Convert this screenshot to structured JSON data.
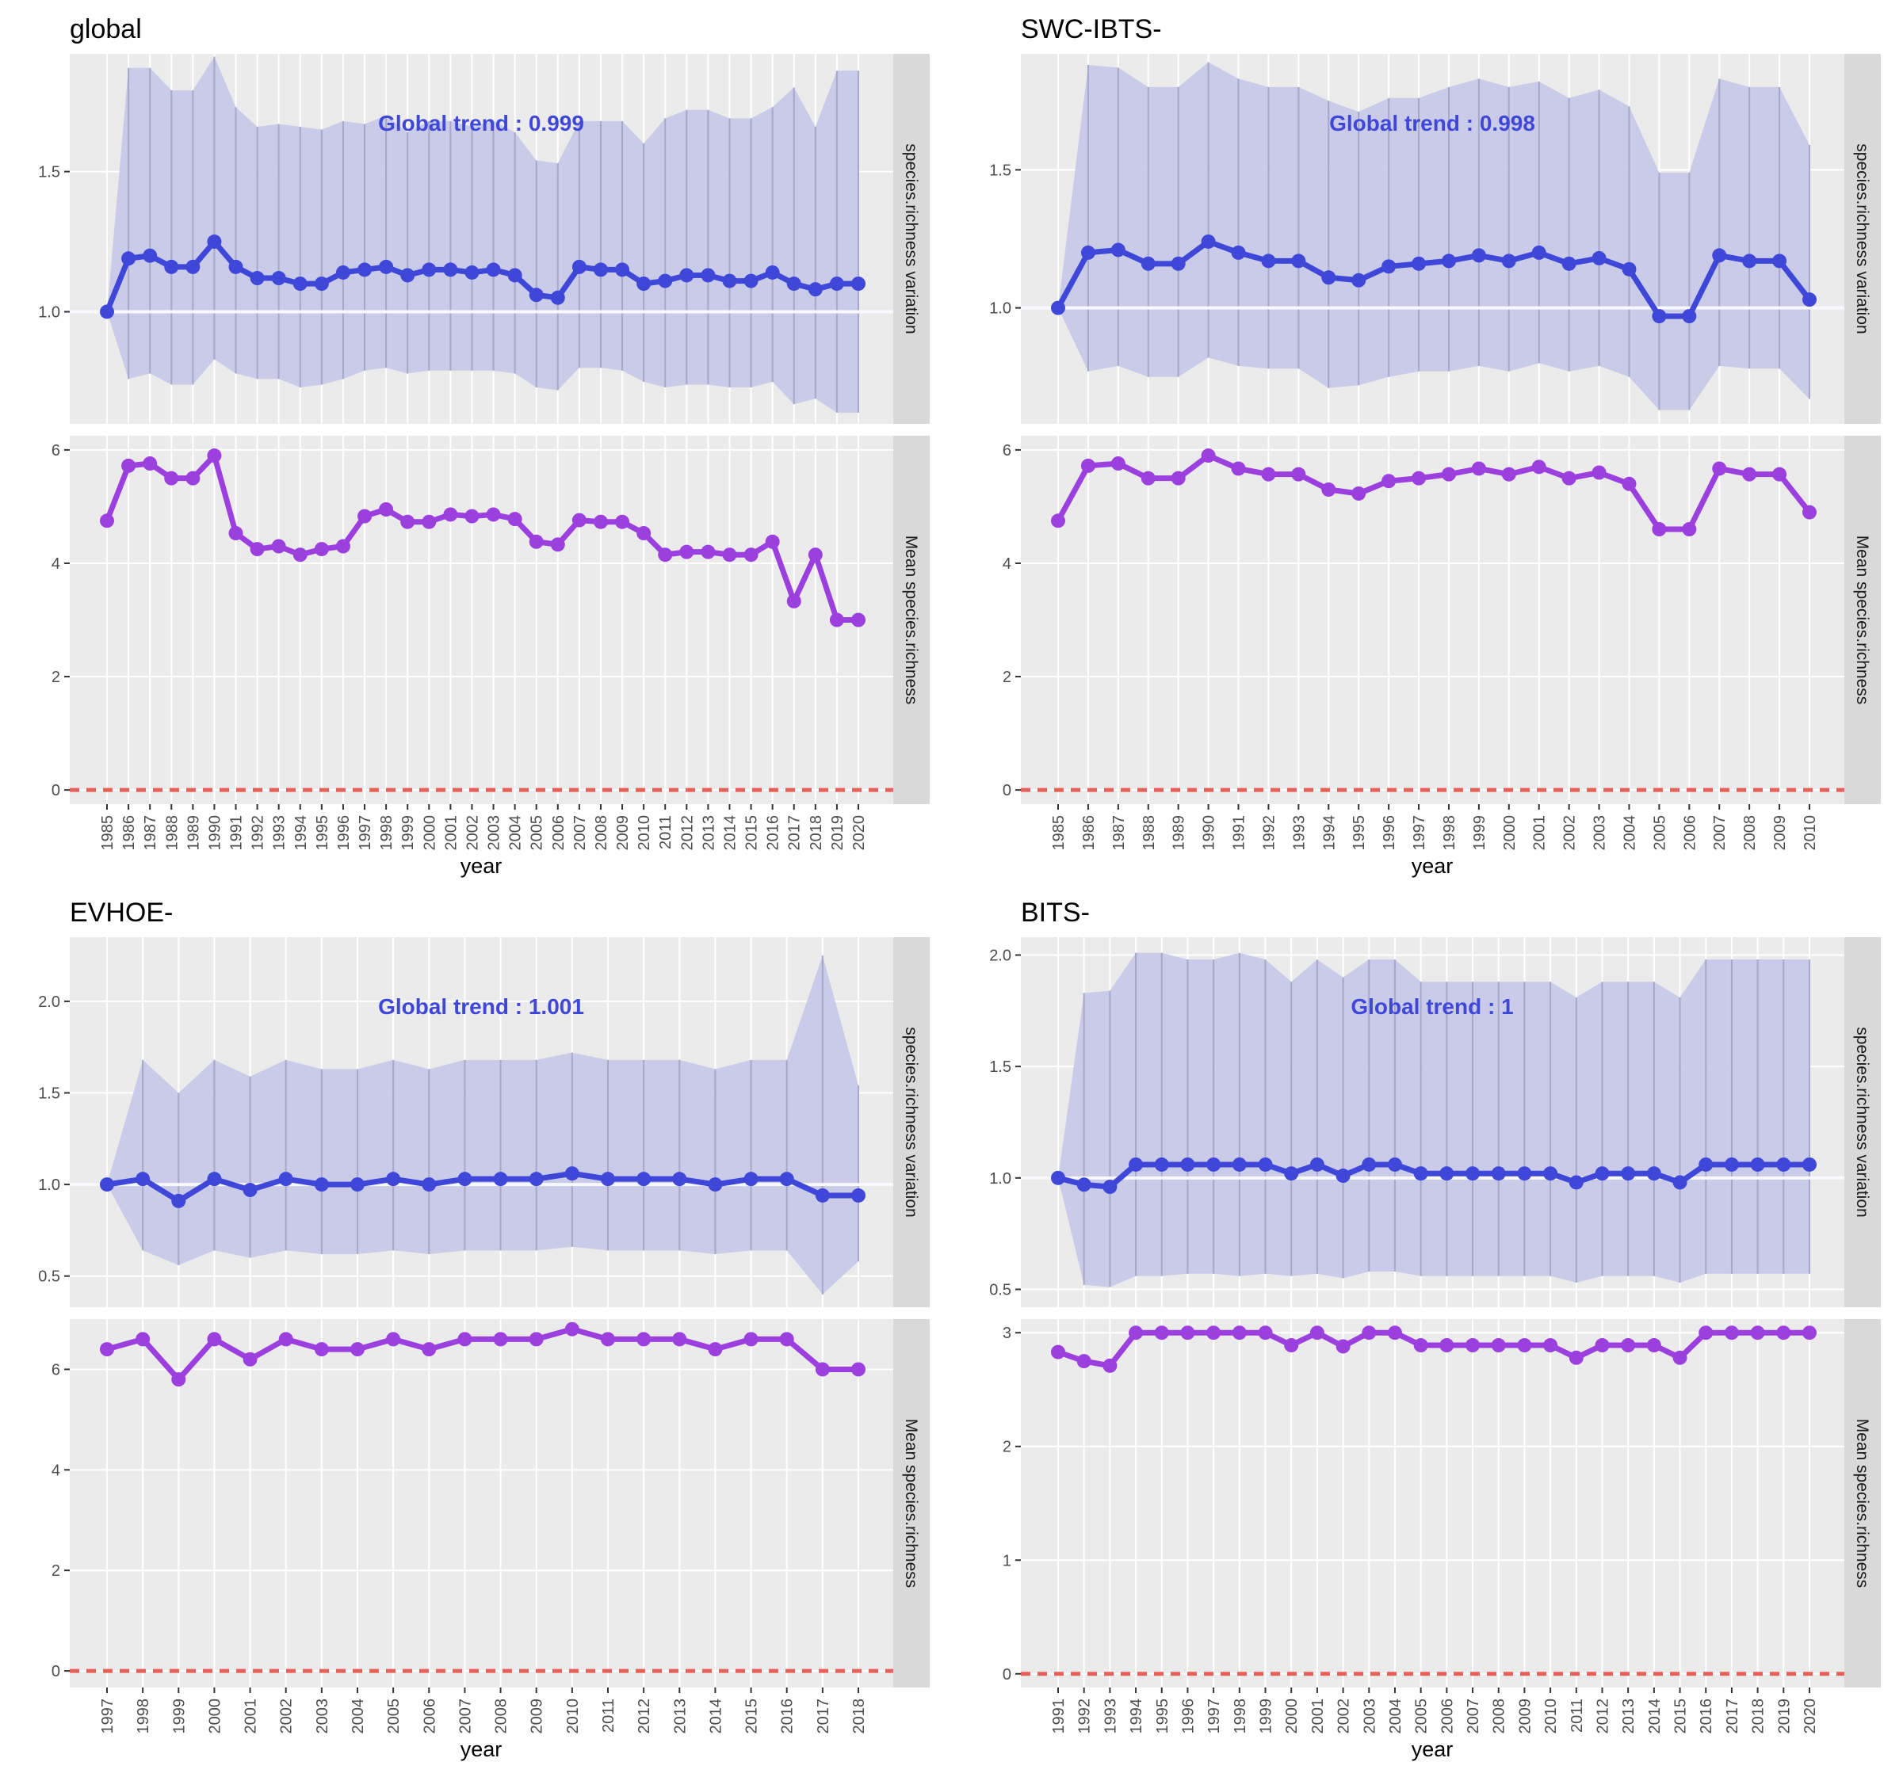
{
  "colors": {
    "panel_bg": "#EBEBEB",
    "strip_bg": "#D9D9D9",
    "grid": "#FFFFFF",
    "ribbon": "#C8C9E8",
    "ribbon_lines": "#A6A7C9",
    "variation_line": "#3F47D9",
    "mean_line": "#9B3FDE",
    "zero_line": "#E8605A",
    "trend_text": "#3F47D9",
    "axis_text": "#4D4D4D"
  },
  "chart_data": [
    {
      "type": "line",
      "title": "global",
      "xlabel": "year",
      "trend_label": "Global trend : 0.999",
      "facets": [
        "species.richness  variation",
        "Mean  species.richness"
      ],
      "years": [
        1985,
        1986,
        1987,
        1988,
        1989,
        1990,
        1991,
        1992,
        1993,
        1994,
        1995,
        1996,
        1997,
        1998,
        1999,
        2000,
        2001,
        2002,
        2003,
        2004,
        2005,
        2006,
        2007,
        2008,
        2009,
        2010,
        2011,
        2012,
        2013,
        2014,
        2015,
        2016,
        2017,
        2018,
        2019,
        2020
      ],
      "variation": {
        "ylim": [
          0.6,
          1.92
        ],
        "ticks": [
          1.0,
          1.5
        ],
        "values": [
          1.0,
          1.19,
          1.2,
          1.16,
          1.16,
          1.25,
          1.16,
          1.12,
          1.12,
          1.1,
          1.1,
          1.14,
          1.15,
          1.16,
          1.13,
          1.15,
          1.15,
          1.14,
          1.15,
          1.13,
          1.06,
          1.05,
          1.16,
          1.15,
          1.15,
          1.1,
          1.11,
          1.13,
          1.13,
          1.11,
          1.11,
          1.14,
          1.1,
          1.08,
          1.1,
          1.1
        ],
        "lower": [
          1.0,
          0.76,
          0.78,
          0.74,
          0.74,
          0.83,
          0.78,
          0.76,
          0.76,
          0.73,
          0.74,
          0.76,
          0.79,
          0.8,
          0.78,
          0.79,
          0.79,
          0.79,
          0.79,
          0.78,
          0.73,
          0.72,
          0.8,
          0.8,
          0.79,
          0.75,
          0.73,
          0.74,
          0.74,
          0.73,
          0.73,
          0.75,
          0.67,
          0.69,
          0.64,
          0.64
        ],
        "upper": [
          1.0,
          1.87,
          1.87,
          1.79,
          1.79,
          1.91,
          1.73,
          1.66,
          1.67,
          1.66,
          1.65,
          1.68,
          1.67,
          1.7,
          1.64,
          1.68,
          1.68,
          1.66,
          1.68,
          1.64,
          1.54,
          1.53,
          1.68,
          1.68,
          1.68,
          1.6,
          1.69,
          1.72,
          1.72,
          1.69,
          1.69,
          1.73,
          1.8,
          1.66,
          1.86,
          1.86
        ]
      },
      "mean": {
        "ylim": [
          -0.25,
          6.25
        ],
        "ticks": [
          0,
          2,
          4,
          6
        ],
        "values": [
          4.75,
          5.72,
          5.76,
          5.5,
          5.5,
          5.9,
          4.53,
          4.25,
          4.3,
          4.15,
          4.25,
          4.3,
          4.83,
          4.95,
          4.73,
          4.73,
          4.86,
          4.83,
          4.86,
          4.78,
          4.38,
          4.33,
          4.76,
          4.73,
          4.73,
          4.53,
          4.15,
          4.2,
          4.2,
          4.15,
          4.15,
          4.38,
          3.33,
          4.15,
          3.0,
          3.0
        ]
      }
    },
    {
      "type": "line",
      "title": "SWC-IBTS-",
      "xlabel": "year",
      "trend_label": "Global trend : 0.998",
      "facets": [
        "species.richness  variation",
        "Mean  species.richness"
      ],
      "years": [
        1985,
        1986,
        1987,
        1988,
        1989,
        1990,
        1991,
        1992,
        1993,
        1994,
        1995,
        1996,
        1997,
        1998,
        1999,
        2000,
        2001,
        2002,
        2003,
        2004,
        2005,
        2006,
        2007,
        2008,
        2009,
        2010
      ],
      "variation": {
        "ylim": [
          0.58,
          1.92
        ],
        "ticks": [
          1.0,
          1.5
        ],
        "values": [
          1.0,
          1.2,
          1.21,
          1.16,
          1.16,
          1.24,
          1.2,
          1.17,
          1.17,
          1.11,
          1.1,
          1.15,
          1.16,
          1.17,
          1.19,
          1.17,
          1.2,
          1.16,
          1.18,
          1.14,
          0.97,
          0.97,
          1.19,
          1.17,
          1.17,
          1.03
        ],
        "lower": [
          1.0,
          0.77,
          0.79,
          0.75,
          0.75,
          0.82,
          0.79,
          0.78,
          0.78,
          0.71,
          0.72,
          0.75,
          0.77,
          0.77,
          0.79,
          0.77,
          0.8,
          0.77,
          0.79,
          0.75,
          0.63,
          0.63,
          0.79,
          0.78,
          0.78,
          0.67
        ],
        "upper": [
          1.0,
          1.88,
          1.87,
          1.8,
          1.8,
          1.89,
          1.83,
          1.8,
          1.8,
          1.75,
          1.71,
          1.76,
          1.76,
          1.8,
          1.83,
          1.8,
          1.82,
          1.76,
          1.79,
          1.73,
          1.49,
          1.49,
          1.83,
          1.8,
          1.8,
          1.59
        ]
      },
      "mean": {
        "ylim": [
          -0.25,
          6.25
        ],
        "ticks": [
          0,
          2,
          4,
          6
        ],
        "values": [
          4.75,
          5.72,
          5.76,
          5.5,
          5.5,
          5.9,
          5.67,
          5.57,
          5.57,
          5.3,
          5.23,
          5.45,
          5.5,
          5.57,
          5.67,
          5.57,
          5.7,
          5.5,
          5.6,
          5.4,
          4.6,
          4.6,
          5.67,
          5.57,
          5.57,
          4.9
        ]
      }
    },
    {
      "type": "line",
      "title": "EVHOE-",
      "xlabel": "year",
      "trend_label": "Global trend : 1.001",
      "facets": [
        "species.richness  variation",
        "Mean  species.richness"
      ],
      "years": [
        1997,
        1998,
        1999,
        2000,
        2001,
        2002,
        2003,
        2004,
        2005,
        2006,
        2007,
        2008,
        2009,
        2010,
        2011,
        2012,
        2013,
        2014,
        2015,
        2016,
        2017,
        2018
      ],
      "variation": {
        "ylim": [
          0.33,
          2.35
        ],
        "ticks": [
          0.5,
          1.0,
          1.5,
          2.0
        ],
        "values": [
          1.0,
          1.03,
          0.91,
          1.03,
          0.97,
          1.03,
          1.0,
          1.0,
          1.03,
          1.0,
          1.03,
          1.03,
          1.03,
          1.06,
          1.03,
          1.03,
          1.03,
          1.0,
          1.03,
          1.03,
          0.94,
          0.94
        ],
        "lower": [
          1.0,
          0.64,
          0.56,
          0.64,
          0.6,
          0.64,
          0.62,
          0.62,
          0.64,
          0.62,
          0.64,
          0.64,
          0.64,
          0.66,
          0.64,
          0.64,
          0.64,
          0.62,
          0.64,
          0.64,
          0.4,
          0.58
        ],
        "upper": [
          1.0,
          1.68,
          1.5,
          1.68,
          1.59,
          1.68,
          1.63,
          1.63,
          1.68,
          1.63,
          1.68,
          1.68,
          1.68,
          1.72,
          1.68,
          1.68,
          1.68,
          1.63,
          1.68,
          1.68,
          2.25,
          1.54
        ]
      },
      "mean": {
        "ylim": [
          -0.33,
          7.0
        ],
        "ticks": [
          0,
          2,
          4,
          6
        ],
        "values": [
          6.4,
          6.6,
          5.8,
          6.6,
          6.2,
          6.6,
          6.4,
          6.4,
          6.6,
          6.4,
          6.6,
          6.6,
          6.6,
          6.8,
          6.6,
          6.6,
          6.6,
          6.4,
          6.6,
          6.6,
          6.0,
          6.0
        ]
      }
    },
    {
      "type": "line",
      "title": "BITS-",
      "xlabel": "year",
      "trend_label": "Global trend : 1",
      "facets": [
        "species.richness  variation",
        "Mean  species.richness"
      ],
      "years": [
        1991,
        1992,
        1993,
        1994,
        1995,
        1996,
        1997,
        1998,
        1999,
        2000,
        2001,
        2002,
        2003,
        2004,
        2005,
        2006,
        2007,
        2008,
        2009,
        2010,
        2011,
        2012,
        2013,
        2014,
        2015,
        2016,
        2017,
        2018,
        2019,
        2020
      ],
      "variation": {
        "ylim": [
          0.42,
          2.08
        ],
        "ticks": [
          0.5,
          1.0,
          1.5,
          2.0
        ],
        "values": [
          1.0,
          0.97,
          0.96,
          1.06,
          1.06,
          1.06,
          1.06,
          1.06,
          1.06,
          1.02,
          1.06,
          1.01,
          1.06,
          1.06,
          1.02,
          1.02,
          1.02,
          1.02,
          1.02,
          1.02,
          0.98,
          1.02,
          1.02,
          1.02,
          0.98,
          1.06,
          1.06,
          1.06,
          1.06,
          1.06
        ],
        "lower": [
          1.0,
          0.52,
          0.51,
          0.56,
          0.56,
          0.57,
          0.57,
          0.56,
          0.57,
          0.56,
          0.57,
          0.55,
          0.58,
          0.58,
          0.56,
          0.56,
          0.56,
          0.56,
          0.56,
          0.56,
          0.53,
          0.56,
          0.56,
          0.56,
          0.53,
          0.57,
          0.57,
          0.57,
          0.57,
          0.57
        ],
        "upper": [
          1.0,
          1.83,
          1.84,
          2.01,
          2.01,
          1.98,
          1.98,
          2.01,
          1.98,
          1.88,
          1.98,
          1.9,
          1.98,
          1.98,
          1.88,
          1.88,
          1.88,
          1.88,
          1.88,
          1.88,
          1.81,
          1.88,
          1.88,
          1.88,
          1.81,
          1.98,
          1.98,
          1.98,
          1.98,
          1.98
        ]
      },
      "mean": {
        "ylim": [
          -0.12,
          3.12
        ],
        "ticks": [
          0,
          1,
          2,
          3
        ],
        "values": [
          2.83,
          2.75,
          2.71,
          3.0,
          3.0,
          3.0,
          3.0,
          3.0,
          3.0,
          2.89,
          3.0,
          2.88,
          3.0,
          3.0,
          2.89,
          2.89,
          2.89,
          2.89,
          2.89,
          2.89,
          2.78,
          2.89,
          2.89,
          2.89,
          2.78,
          3.0,
          3.0,
          3.0,
          3.0,
          3.0
        ]
      }
    }
  ]
}
